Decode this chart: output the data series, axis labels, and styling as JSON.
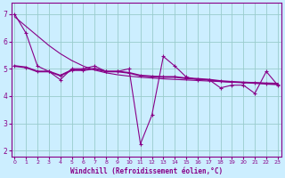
{
  "xlabel": "Windchill (Refroidissement éolien,°C)",
  "background_color": "#cceeff",
  "grid_color": "#99cccc",
  "line_color": "#880088",
  "x_data": [
    0,
    1,
    2,
    3,
    4,
    5,
    6,
    7,
    8,
    9,
    10,
    11,
    12,
    13,
    14,
    15,
    16,
    17,
    18,
    19,
    20,
    21,
    22,
    23
  ],
  "y_actual": [
    7.0,
    6.3,
    5.1,
    4.9,
    4.6,
    5.0,
    5.0,
    5.1,
    4.9,
    4.9,
    5.0,
    2.25,
    3.3,
    5.45,
    5.1,
    4.7,
    4.6,
    4.6,
    4.3,
    4.4,
    4.4,
    4.1,
    4.9,
    4.4
  ],
  "y_smooth": [
    5.1,
    5.05,
    4.9,
    4.9,
    4.75,
    4.95,
    4.95,
    5.0,
    4.9,
    4.9,
    4.85,
    4.75,
    4.72,
    4.7,
    4.7,
    4.65,
    4.63,
    4.6,
    4.55,
    4.52,
    4.5,
    4.48,
    4.45,
    4.43
  ],
  "y_trend": [
    6.9,
    6.55,
    6.2,
    5.85,
    5.55,
    5.3,
    5.1,
    4.95,
    4.85,
    4.78,
    4.73,
    4.69,
    4.66,
    4.63,
    4.61,
    4.59,
    4.57,
    4.55,
    4.53,
    4.51,
    4.5,
    4.49,
    4.48,
    4.47
  ],
  "xlim": [
    0,
    23
  ],
  "ylim": [
    1.8,
    7.4
  ],
  "yticks": [
    2,
    3,
    4,
    5,
    6,
    7
  ],
  "xticks": [
    0,
    1,
    2,
    3,
    4,
    5,
    6,
    7,
    8,
    9,
    10,
    11,
    12,
    13,
    14,
    15,
    16,
    17,
    18,
    19,
    20,
    21,
    22,
    23
  ]
}
